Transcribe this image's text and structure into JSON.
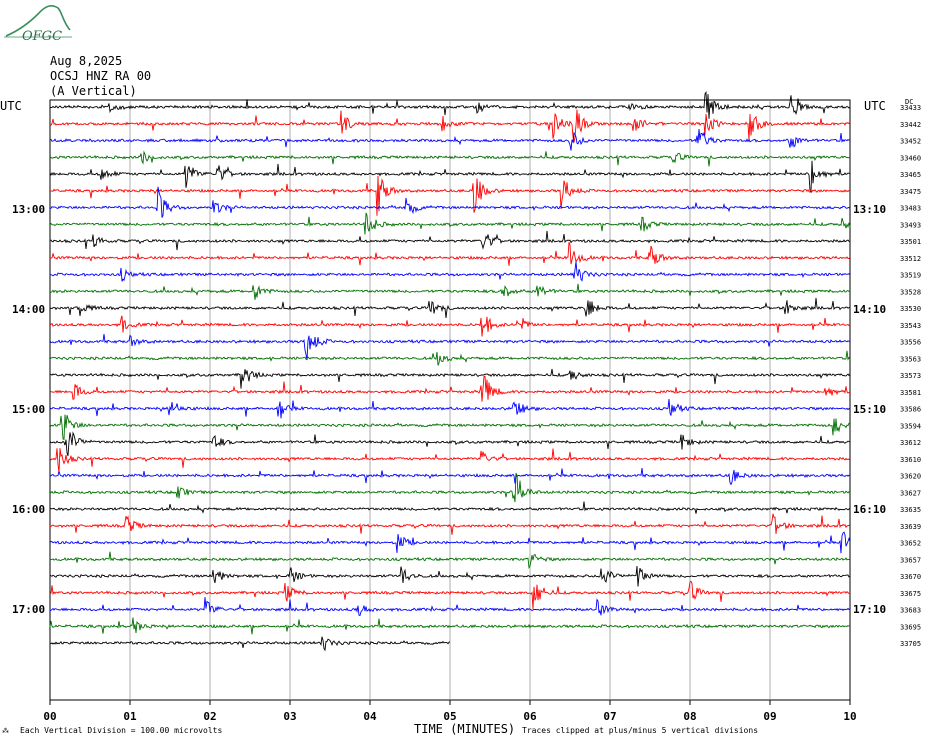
{
  "header": {
    "logo_text": "OFGC",
    "date": "Aug 8,2025",
    "station": "OCSJ HNZ RA 00",
    "component": "(A Vertical)"
  },
  "axes": {
    "left_tz": "UTC",
    "right_tz": "UTC",
    "x_title": "TIME (MINUTES)",
    "x_ticks": [
      "00",
      "01",
      "02",
      "03",
      "04",
      "05",
      "06",
      "07",
      "08",
      "09",
      "10"
    ],
    "left_hour_labels": [
      "13:00",
      "14:00",
      "15:00",
      "16:00",
      "17:00"
    ],
    "right_hour_labels": [
      "13:10",
      "14:10",
      "15:10",
      "16:10",
      "17:10"
    ],
    "right_col_header": "DC"
  },
  "footer": {
    "scale_note": "Each Vertical Division = 100.00 microvolts",
    "clip_note": "Traces clipped at plus/minus 5 vertical divisions"
  },
  "colors": {
    "cycle": [
      "#000000",
      "#ff0000",
      "#0000ff",
      "#007000"
    ],
    "grid": "#9a9a9a"
  },
  "chart_data": {
    "type": "line",
    "title": "OCSJ HNZ RA 00 (A Vertical)",
    "x_label": "TIME (MINUTES)",
    "xlim": [
      0,
      10
    ],
    "grid": true,
    "line_count": 33,
    "dc_offsets": [
      33433,
      33442,
      33452,
      33460,
      33465,
      33475,
      33483,
      33493,
      33501,
      33512,
      33519,
      33528,
      33530,
      33543,
      33556,
      33563,
      33573,
      33581,
      33586,
      33594,
      33612,
      33610,
      33620,
      33627,
      33635,
      33639,
      33652,
      33657,
      33670,
      33675,
      33683,
      33695,
      33705
    ],
    "last_line_end_minute": 5.0,
    "events": [
      {
        "line": 0,
        "minute": 0.75,
        "amp": 6
      },
      {
        "line": 0,
        "minute": 5.35,
        "amp": 6
      },
      {
        "line": 0,
        "minute": 7.25,
        "amp": 5
      },
      {
        "line": 0,
        "minute": 8.2,
        "amp": 22
      },
      {
        "line": 0,
        "minute": 9.25,
        "amp": 14
      },
      {
        "line": 1,
        "minute": 3.65,
        "amp": 12
      },
      {
        "line": 1,
        "minute": 4.9,
        "amp": 8
      },
      {
        "line": 1,
        "minute": 6.3,
        "amp": 14
      },
      {
        "line": 1,
        "minute": 6.55,
        "amp": 20
      },
      {
        "line": 1,
        "minute": 7.3,
        "amp": 10
      },
      {
        "line": 1,
        "minute": 8.2,
        "amp": 14
      },
      {
        "line": 1,
        "minute": 8.75,
        "amp": 18
      },
      {
        "line": 2,
        "minute": 6.5,
        "amp": 14
      },
      {
        "line": 2,
        "minute": 8.1,
        "amp": 18
      },
      {
        "line": 2,
        "minute": 9.25,
        "amp": 10
      },
      {
        "line": 3,
        "minute": 1.15,
        "amp": 7
      },
      {
        "line": 3,
        "minute": 7.8,
        "amp": 6
      },
      {
        "line": 4,
        "minute": 0.65,
        "amp": 7
      },
      {
        "line": 4,
        "minute": 1.7,
        "amp": 16
      },
      {
        "line": 4,
        "minute": 2.1,
        "amp": 10
      },
      {
        "line": 4,
        "minute": 9.5,
        "amp": 22
      },
      {
        "line": 5,
        "minute": 4.1,
        "amp": 24
      },
      {
        "line": 5,
        "minute": 5.3,
        "amp": 24
      },
      {
        "line": 5,
        "minute": 6.4,
        "amp": 18
      },
      {
        "line": 6,
        "minute": 1.35,
        "amp": 20
      },
      {
        "line": 6,
        "minute": 2.05,
        "amp": 8
      },
      {
        "line": 6,
        "minute": 4.45,
        "amp": 12
      },
      {
        "line": 7,
        "minute": 3.95,
        "amp": 16
      },
      {
        "line": 7,
        "minute": 7.4,
        "amp": 8
      },
      {
        "line": 7,
        "minute": 9.9,
        "amp": 8
      },
      {
        "line": 8,
        "minute": 0.55,
        "amp": 6
      },
      {
        "line": 8,
        "minute": 5.4,
        "amp": 16
      },
      {
        "line": 9,
        "minute": 6.5,
        "amp": 16
      },
      {
        "line": 9,
        "minute": 7.5,
        "amp": 16
      },
      {
        "line": 10,
        "minute": 6.55,
        "amp": 18
      },
      {
        "line": 10,
        "minute": 0.9,
        "amp": 6
      },
      {
        "line": 11,
        "minute": 2.55,
        "amp": 10
      },
      {
        "line": 11,
        "minute": 5.65,
        "amp": 10
      },
      {
        "line": 11,
        "minute": 6.1,
        "amp": 8
      },
      {
        "line": 12,
        "minute": 0.35,
        "amp": 10
      },
      {
        "line": 12,
        "minute": 4.75,
        "amp": 10
      },
      {
        "line": 12,
        "minute": 6.7,
        "amp": 14
      },
      {
        "line": 12,
        "minute": 9.2,
        "amp": 8
      },
      {
        "line": 13,
        "minute": 0.9,
        "amp": 8
      },
      {
        "line": 13,
        "minute": 5.4,
        "amp": 16
      },
      {
        "line": 13,
        "minute": 5.85,
        "amp": 8
      },
      {
        "line": 14,
        "minute": 3.2,
        "amp": 26
      },
      {
        "line": 14,
        "minute": 1.0,
        "amp": 6
      },
      {
        "line": 15,
        "minute": 4.85,
        "amp": 7
      },
      {
        "line": 16,
        "minute": 2.4,
        "amp": 14
      },
      {
        "line": 16,
        "minute": 6.5,
        "amp": 8
      },
      {
        "line": 17,
        "minute": 5.4,
        "amp": 26
      },
      {
        "line": 17,
        "minute": 0.3,
        "amp": 10
      },
      {
        "line": 17,
        "minute": 9.7,
        "amp": 8
      },
      {
        "line": 18,
        "minute": 1.5,
        "amp": 12
      },
      {
        "line": 18,
        "minute": 2.85,
        "amp": 12
      },
      {
        "line": 18,
        "minute": 5.8,
        "amp": 12
      },
      {
        "line": 18,
        "minute": 7.75,
        "amp": 10
      },
      {
        "line": 19,
        "minute": 0.15,
        "amp": 22
      },
      {
        "line": 19,
        "minute": 9.8,
        "amp": 10
      },
      {
        "line": 20,
        "minute": 0.2,
        "amp": 26
      },
      {
        "line": 20,
        "minute": 2.05,
        "amp": 8
      },
      {
        "line": 20,
        "minute": 7.9,
        "amp": 8
      },
      {
        "line": 21,
        "minute": 0.1,
        "amp": 16
      },
      {
        "line": 21,
        "minute": 5.4,
        "amp": 8
      },
      {
        "line": 22,
        "minute": 8.5,
        "amp": 10
      },
      {
        "line": 23,
        "minute": 1.6,
        "amp": 8
      },
      {
        "line": 23,
        "minute": 5.8,
        "amp": 28
      },
      {
        "line": 25,
        "minute": 0.95,
        "amp": 12
      },
      {
        "line": 25,
        "minute": 9.05,
        "amp": 12
      },
      {
        "line": 26,
        "minute": 4.35,
        "amp": 10
      },
      {
        "line": 26,
        "minute": 9.9,
        "amp": 14
      },
      {
        "line": 27,
        "minute": 6.0,
        "amp": 8
      },
      {
        "line": 28,
        "minute": 2.05,
        "amp": 10
      },
      {
        "line": 28,
        "minute": 3.0,
        "amp": 10
      },
      {
        "line": 28,
        "minute": 4.4,
        "amp": 10
      },
      {
        "line": 28,
        "minute": 6.9,
        "amp": 14
      },
      {
        "line": 28,
        "minute": 7.35,
        "amp": 12
      },
      {
        "line": 29,
        "minute": 2.95,
        "amp": 10
      },
      {
        "line": 29,
        "minute": 6.05,
        "amp": 20
      },
      {
        "line": 29,
        "minute": 8.0,
        "amp": 12
      },
      {
        "line": 30,
        "minute": 1.95,
        "amp": 12
      },
      {
        "line": 30,
        "minute": 3.85,
        "amp": 8
      },
      {
        "line": 30,
        "minute": 6.85,
        "amp": 8
      },
      {
        "line": 31,
        "minute": 1.05,
        "amp": 8
      },
      {
        "line": 32,
        "minute": 3.4,
        "amp": 10
      }
    ]
  }
}
